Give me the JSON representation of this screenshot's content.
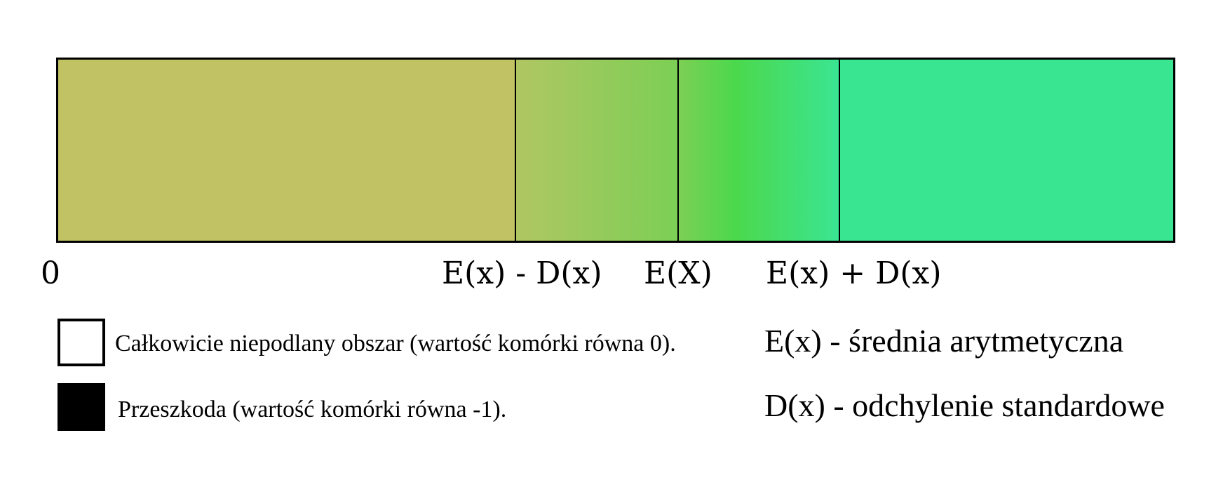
{
  "colors": {
    "low": "#c1c264",
    "rise_start": "#b0c663",
    "rise_end": "#7ccf55",
    "peak": "#4cd84c",
    "high": "#3ae592",
    "obstacle": "#000000",
    "empty": "#ffffff",
    "border": "#000000"
  },
  "axis": {
    "zero": "0",
    "low": "E(x) - D(x)",
    "mean": "E(X)",
    "high": "E(x) + D(x)"
  },
  "legend": {
    "empty_label": "Całkowicie niepodlany obszar (wartość komórki równa 0).",
    "obstacle_label": "Przeszkoda (wartość komórki równa -1)."
  },
  "definitions": {
    "mean": "E(x) - średnia arytmetyczna",
    "std": "D(x) - odchylenie standardowe"
  }
}
